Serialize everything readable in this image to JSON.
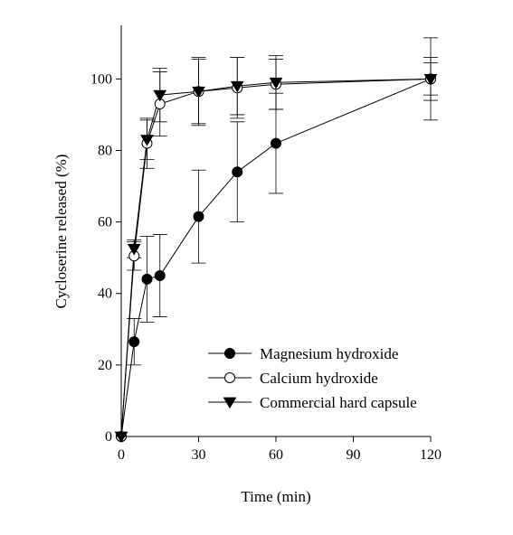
{
  "chart_data": {
    "type": "line",
    "xlabel": "Time (min)",
    "ylabel": "Cycloserine released (%)",
    "xlim": [
      0,
      120
    ],
    "ylim": [
      0,
      115
    ],
    "xticks": [
      0,
      30,
      60,
      90,
      120
    ],
    "yticks": [
      0,
      20,
      40,
      60,
      80,
      100
    ],
    "grid": false,
    "legend_position": "bottom-right",
    "x": [
      0,
      5,
      10,
      15,
      30,
      45,
      60,
      120
    ],
    "series": [
      {
        "name": "Magnesium hydroxide",
        "marker": "filled-circle",
        "values": [
          0,
          26.5,
          44,
          45,
          61.5,
          74,
          82,
          100
        ],
        "errors": [
          0,
          6.5,
          12,
          11.5,
          13,
          14,
          14,
          11.5
        ]
      },
      {
        "name": "Calcium hydroxide",
        "marker": "open-circle",
        "values": [
          0,
          50.5,
          82,
          93,
          96.5,
          97.5,
          98.5,
          100
        ],
        "errors": [
          0,
          4,
          7,
          9,
          9,
          8.5,
          7,
          6
        ]
      },
      {
        "name": "Commercial hard capsule",
        "marker": "filled-triangle-down",
        "values": [
          0,
          52.5,
          83,
          95.5,
          96.5,
          98,
          99,
          100
        ],
        "errors": [
          0,
          2.5,
          5.5,
          7.5,
          9.5,
          8,
          7.5,
          4.5
        ]
      }
    ]
  }
}
